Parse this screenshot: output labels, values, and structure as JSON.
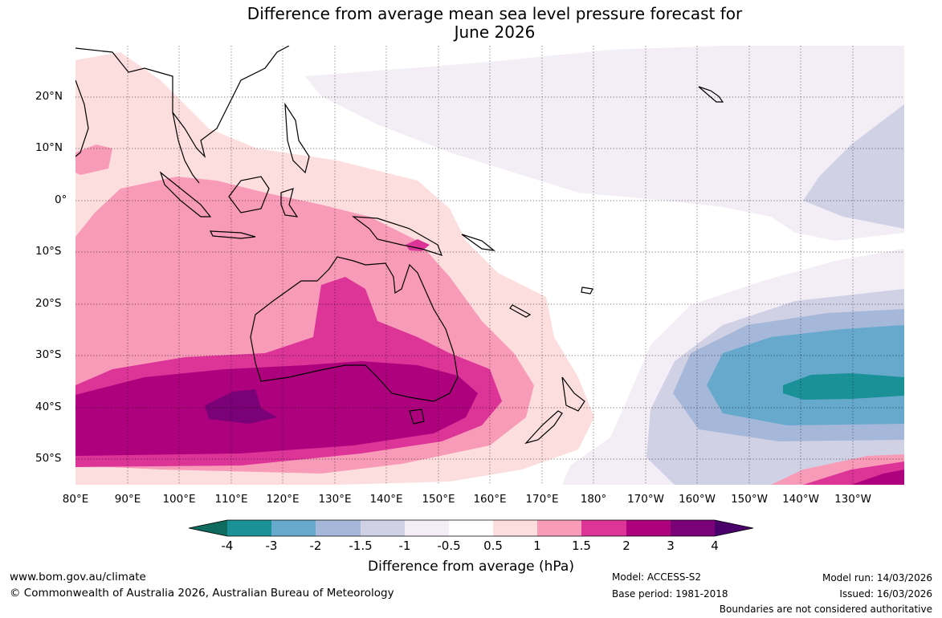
{
  "title": {
    "line1": "Difference from average mean sea level pressure forecast for",
    "line2": "June 2026"
  },
  "lat_labels": [
    "20°N",
    "10°N",
    "0°",
    "10°S",
    "20°S",
    "30°S",
    "40°S",
    "50°S"
  ],
  "lon_labels": [
    "80°E",
    "90°E",
    "100°E",
    "110°E",
    "120°E",
    "130°E",
    "140°E",
    "150°E",
    "160°E",
    "170°E",
    "180°",
    "170°W",
    "160°W",
    "150°W",
    "140°W",
    "130°W"
  ],
  "colorbar": {
    "ticks": [
      "-4",
      "-3",
      "-2",
      "-1.5",
      "-1",
      "-0.5",
      "0.5",
      "1",
      "1.5",
      "2",
      "3",
      "4"
    ],
    "colors": [
      "#0f6b5e",
      "#1a9097",
      "#66a9cd",
      "#a6b8d9",
      "#d1d1e6",
      "#f3eef6",
      "#ffffff",
      "#fddede",
      "#f89bb8",
      "#dd3497",
      "#ad017e",
      "#7a0177",
      "#49006a"
    ],
    "title": "Difference from average (hPa)"
  },
  "footer": {
    "website": "www.bom.gov.au/climate",
    "copyright": "© Commonwealth of Australia 2026, Australian Bureau of Meteorology",
    "model": "Model: ACCESS-S2",
    "base_period": "Base period: 1981-2018",
    "model_run": "Model run: 14/03/2026",
    "issued": "Issued: 16/03/2026",
    "disclaimer": "Boundaries are not considered authoritative"
  }
}
